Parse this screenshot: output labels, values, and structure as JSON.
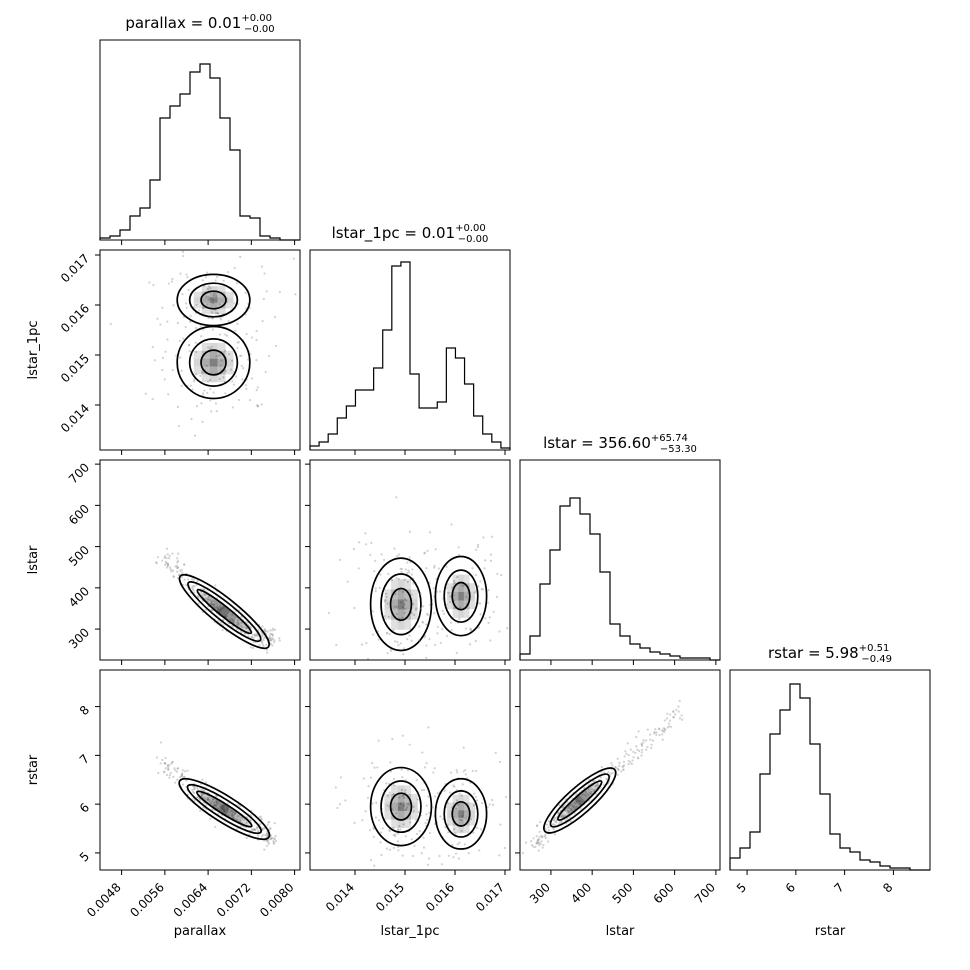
{
  "chart_data": {
    "type": "corner",
    "params": [
      "parallax",
      "lstar_1pc",
      "lstar",
      "rstar"
    ],
    "ranges": {
      "parallax": [
        0.0044,
        0.0081
      ],
      "lstar_1pc": [
        0.0131,
        0.0171
      ],
      "lstar": [
        225,
        710
      ],
      "rstar": [
        4.65,
        8.75
      ]
    },
    "ticks": {
      "parallax": [
        0.0048,
        0.0056,
        0.0064,
        0.0072,
        0.008
      ],
      "lstar_1pc": [
        0.014,
        0.015,
        0.016,
        0.017
      ],
      "lstar": [
        300,
        400,
        500,
        600,
        700
      ],
      "rstar": [
        5,
        6,
        7,
        8
      ]
    },
    "tick_labels": {
      "parallax": [
        "0.0048",
        "0.0056",
        "0.0064",
        "0.0072",
        "0.0080"
      ],
      "lstar_1pc": [
        "0.014",
        "0.015",
        "0.016",
        "0.017"
      ],
      "lstar": [
        "300",
        "400",
        "500",
        "600",
        "700"
      ],
      "rstar": [
        "5",
        "6",
        "7",
        "8"
      ]
    },
    "titles": [
      {
        "param": "parallax",
        "prefix": "parallax = ",
        "value": "0.01",
        "plus": "+0.00",
        "minus": "−0.00"
      },
      {
        "param": "lstar_1pc",
        "prefix": "lstar_1pc = ",
        "value": "0.01",
        "plus": "+0.00",
        "minus": "−0.00"
      },
      {
        "param": "lstar",
        "prefix": "lstar = ",
        "value": "356.60",
        "plus": "+65.74",
        "minus": "−53.30"
      },
      {
        "param": "rstar",
        "prefix": "rstar = ",
        "value": "5.98",
        "plus": "+0.51",
        "minus": "−0.49"
      }
    ],
    "histograms": {
      "parallax": [
        0.01,
        0.02,
        0.05,
        0.12,
        0.16,
        0.3,
        0.61,
        0.67,
        0.73,
        0.84,
        0.88,
        0.81,
        0.61,
        0.45,
        0.12,
        0.11,
        0.02,
        0.01,
        0.0,
        0.0
      ],
      "lstar_1pc": [
        0.02,
        0.04,
        0.08,
        0.16,
        0.22,
        0.3,
        0.3,
        0.41,
        0.6,
        0.92,
        0.94,
        0.38,
        0.21,
        0.21,
        0.24,
        0.51,
        0.46,
        0.33,
        0.17,
        0.08,
        0.04,
        0.01
      ],
      "lstar": [
        0.03,
        0.12,
        0.38,
        0.55,
        0.77,
        0.81,
        0.73,
        0.63,
        0.44,
        0.18,
        0.12,
        0.08,
        0.06,
        0.04,
        0.03,
        0.02,
        0.01,
        0.01,
        0.01,
        0.0
      ],
      "rstar": [
        0.06,
        0.11,
        0.19,
        0.48,
        0.68,
        0.8,
        0.93,
        0.86,
        0.63,
        0.38,
        0.18,
        0.11,
        0.09,
        0.05,
        0.04,
        0.02,
        0.01,
        0.01,
        0.0,
        0.0
      ]
    },
    "correlations": {
      "parallax|lstar_1pc": {
        "centers": [
          [
            0.0065,
            0.01485
          ],
          [
            0.0065,
            0.0161
          ]
        ],
        "spread": [
          0.00042,
          0.00042,
          0.00045,
          0.00032
        ]
      },
      "parallax|lstar": {
        "ridge": [
          [
            0.00555,
            478
          ],
          [
            0.0062,
            395
          ],
          [
            0.0066,
            340
          ],
          [
            0.0072,
            290
          ],
          [
            0.0076,
            275
          ]
        ],
        "width": 22
      },
      "parallax|rstar": {
        "ridge": [
          [
            0.00555,
            6.85
          ],
          [
            0.0062,
            6.25
          ],
          [
            0.0066,
            5.95
          ],
          [
            0.0072,
            5.55
          ],
          [
            0.0076,
            5.3
          ]
        ],
        "width": 0.2
      },
      "lstar_1pc|lstar": {
        "centers": [
          [
            0.01492,
            360
          ],
          [
            0.01612,
            380
          ]
        ],
        "spread": [
          0.00038,
          0.00032,
          70,
          60
        ]
      },
      "lstar_1pc|rstar": {
        "centers": [
          [
            0.01492,
            5.95
          ],
          [
            0.01612,
            5.8
          ]
        ],
        "spread": [
          0.00038,
          0.00032,
          0.5,
          0.45
        ]
      },
      "lstar|rstar": {
        "ridge": [
          [
            255,
            5.15
          ],
          [
            320,
            5.7
          ],
          [
            355,
            5.98
          ],
          [
            420,
            6.45
          ],
          [
            500,
            7.05
          ],
          [
            620,
            7.9
          ]
        ],
        "width": 0.18
      }
    }
  }
}
